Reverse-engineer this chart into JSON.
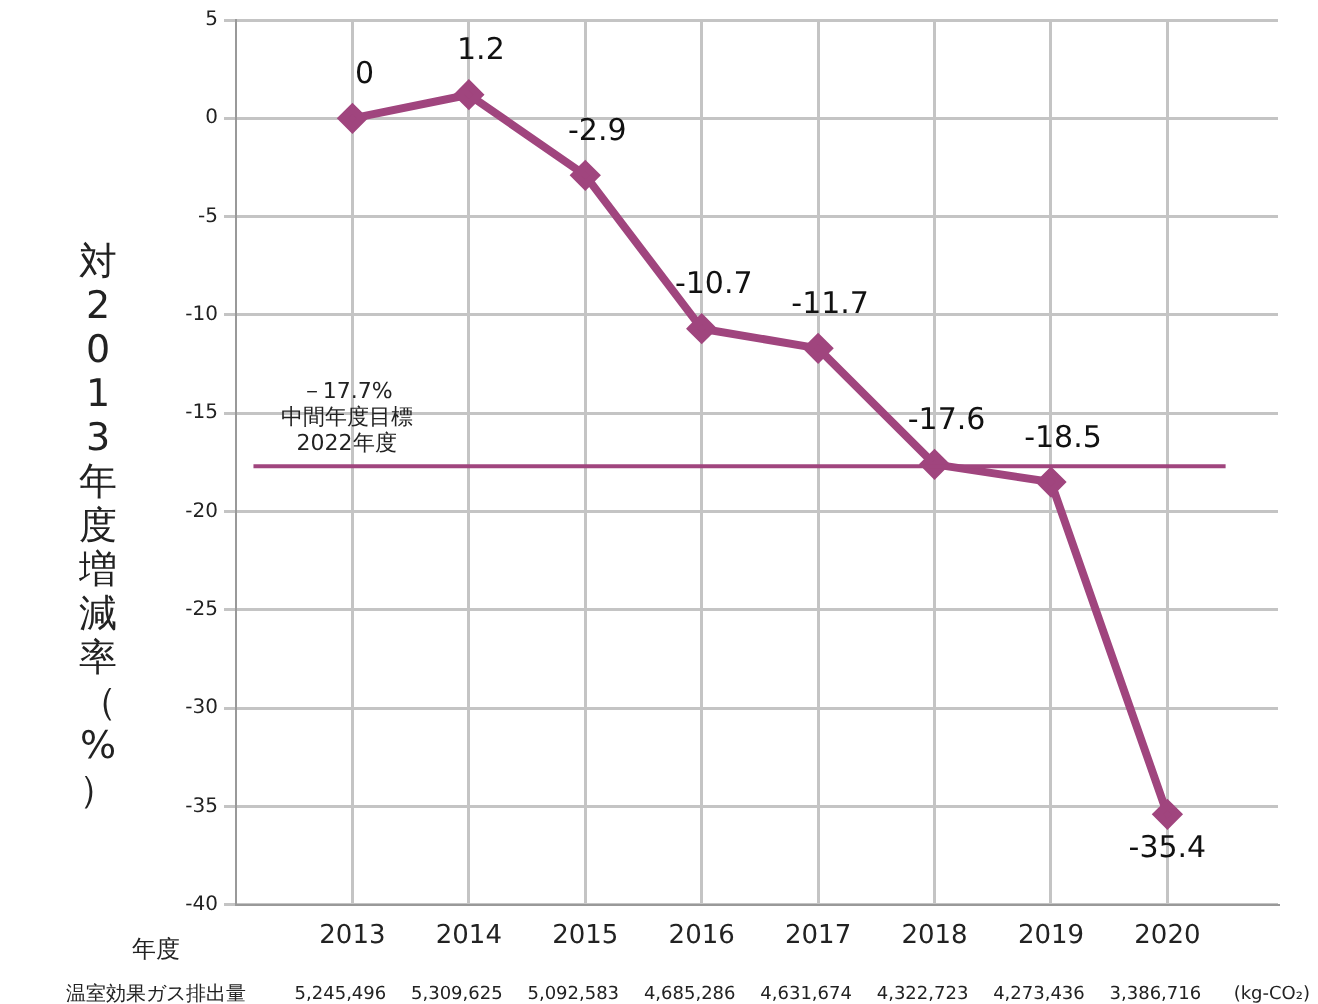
{
  "chart_data": {
    "type": "line",
    "xlabel": "年度",
    "ylabel": "対2013年度増減率（%）",
    "categories": [
      "2013",
      "2014",
      "2015",
      "2016",
      "2017",
      "2018",
      "2019",
      "2020"
    ],
    "series": [
      {
        "color": "#a0457e",
        "values": [
          0,
          1.2,
          -2.9,
          -10.7,
          -11.7,
          -17.6,
          -18.5,
          -35.4
        ]
      }
    ],
    "ylim": [
      -40,
      5
    ],
    "yticks": [
      5,
      0,
      -5,
      -10,
      -15,
      -20,
      -25,
      -30,
      -35,
      -40
    ],
    "ref_lines": [
      {
        "axis": "y",
        "value": -17.7,
        "label": "－17.7%\n中間年度目標\n2022年度",
        "color": "#a0457e"
      }
    ],
    "annotations": [
      "温室効果ガス排出量",
      "5,245,496",
      "5,309,625",
      "5,092,583",
      "4,685,286",
      "4,631,674",
      "4,322,723",
      "4,273,436",
      "3,386,716",
      "(kg-CO₂)"
    ],
    "data_labels": true,
    "grid": true,
    "legend": false,
    "marker": "diamond",
    "line_style": "solid"
  }
}
